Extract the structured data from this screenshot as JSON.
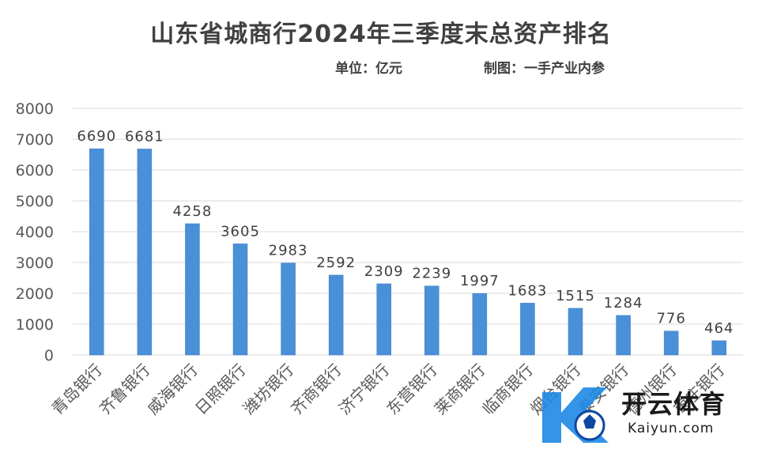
{
  "chart_data": {
    "type": "bar",
    "title": "山东省城商行2024年三季度末总资产排名",
    "unit_note": "单位：亿元",
    "credit_note": "制图：一手产业内参",
    "categories": [
      "青岛银行",
      "齐鲁银行",
      "威海银行",
      "日照银行",
      "潍坊银行",
      "齐商银行",
      "济宁银行",
      "东营银行",
      "莱商银行",
      "临商银行",
      "烟台银行",
      "泰安银行",
      "德州银行",
      "枣庄银行"
    ],
    "values": [
      6690,
      6681,
      4258,
      3605,
      2983,
      2592,
      2309,
      2239,
      1997,
      1683,
      1515,
      1284,
      776,
      464
    ],
    "data_labels": [
      "6690",
      "6681",
      "4258",
      "3605",
      "2983",
      "2592",
      "2309",
      "2239",
      "1997",
      "1683",
      "1515",
      "1284",
      "776",
      "464"
    ],
    "yticks": [
      "0",
      "1000",
      "2000",
      "3000",
      "4000",
      "5000",
      "6000",
      "7000",
      "8000"
    ],
    "ylim": [
      0,
      8000
    ],
    "grid": true,
    "legend": "none",
    "colors": {
      "bar": "#4a90d9",
      "bar_edge": "#3a7cc4",
      "grid": "#d9d9d9",
      "text": "#404040",
      "tick_text": "#595959"
    }
  },
  "watermark": {
    "brand": "开云体育",
    "url": "Kaiyun.com",
    "colors": {
      "logo_blue": "#1e88e5",
      "logo_dark": "#0d47a1"
    }
  }
}
